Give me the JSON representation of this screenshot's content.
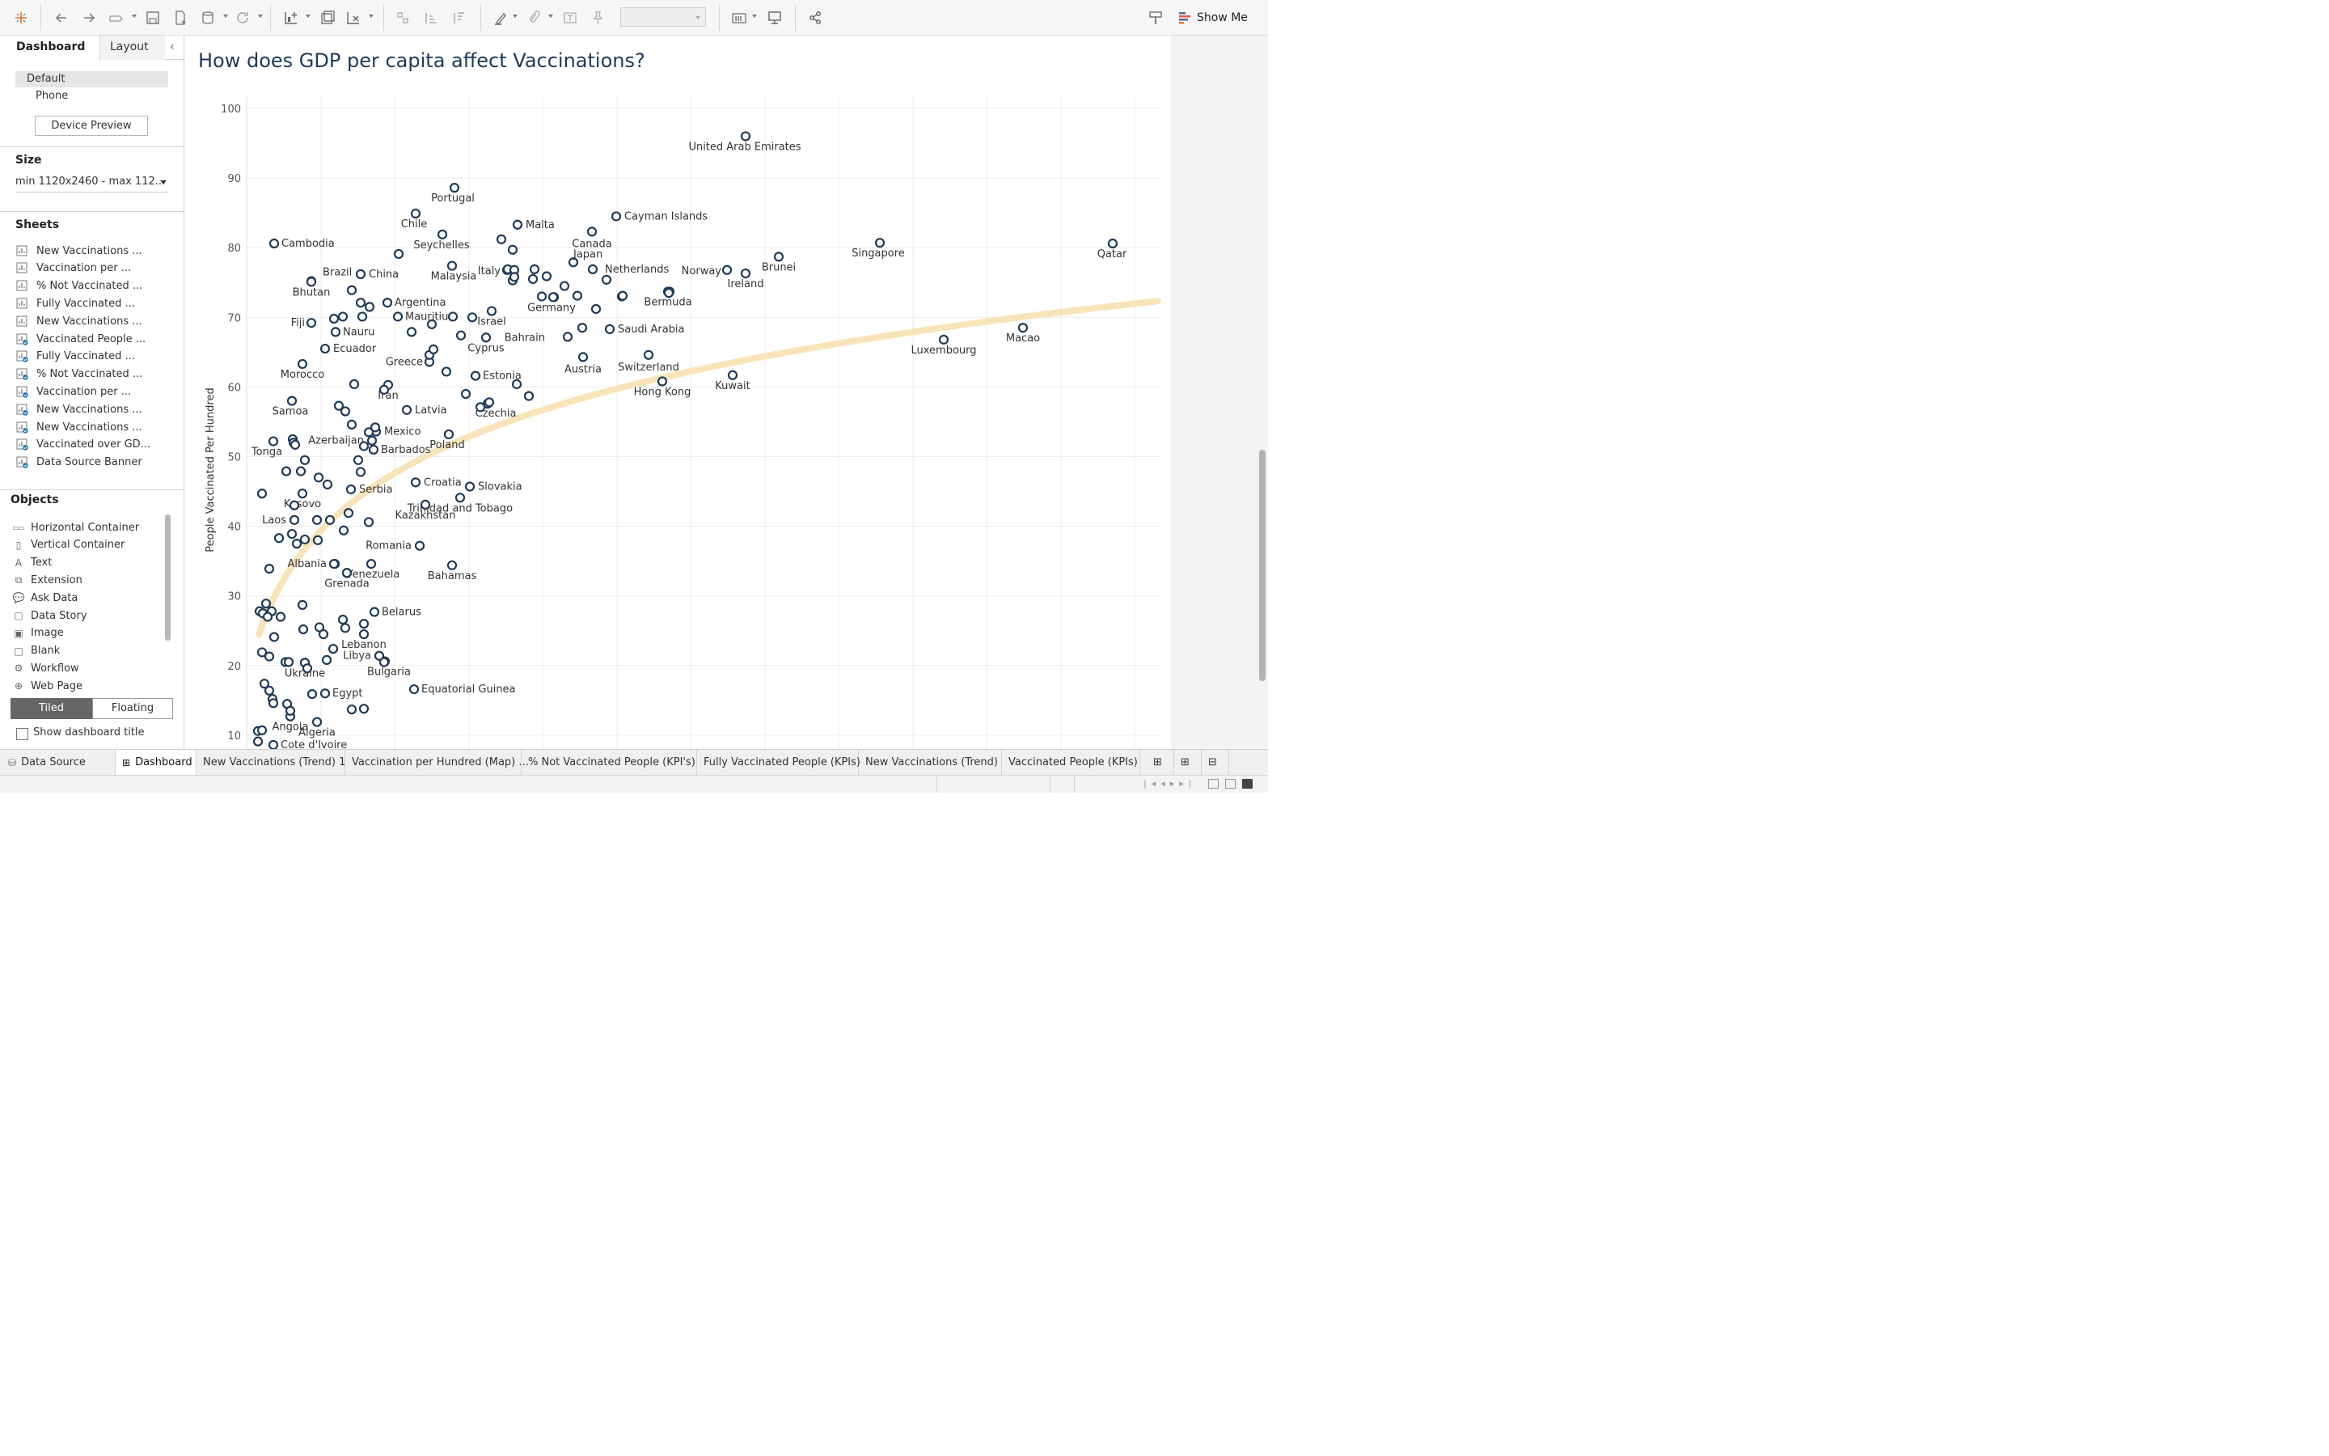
{
  "toolbar": {
    "show_me_label": "Show Me"
  },
  "left_panel": {
    "tabs": [
      "Dashboard",
      "Layout"
    ],
    "device_options": [
      "Default",
      "Phone"
    ],
    "device_preview_label": "Device Preview",
    "size_heading": "Size",
    "size_value": "min 1120x2460 - max 112...",
    "sheets_heading": "Sheets",
    "sheets": [
      {
        "label": "New Vaccinations ...",
        "used": false
      },
      {
        "label": "Vaccination per ...",
        "used": false
      },
      {
        "label": "% Not Vaccinated ...",
        "used": false
      },
      {
        "label": "Fully Vaccinated ...",
        "used": false
      },
      {
        "label": "New Vaccinations ...",
        "used": false
      },
      {
        "label": "Vaccinated People ...",
        "used": true
      },
      {
        "label": "Fully Vaccinated ...",
        "used": true
      },
      {
        "label": "% Not Vaccinated ...",
        "used": true
      },
      {
        "label": "Vaccination per ...",
        "used": true
      },
      {
        "label": "New Vaccinations ...",
        "used": true
      },
      {
        "label": "New Vaccinations ...",
        "used": true
      },
      {
        "label": "Vaccinated over GD...",
        "used": true
      },
      {
        "label": "Data Source Banner",
        "used": true
      }
    ],
    "objects_heading": "Objects",
    "objects": [
      {
        "label": "Horizontal Container",
        "icon": "horizontal-container-icon"
      },
      {
        "label": "Vertical Container",
        "icon": "vertical-container-icon"
      },
      {
        "label": "Text",
        "icon": "text-icon"
      },
      {
        "label": "Extension",
        "icon": "extension-icon"
      },
      {
        "label": "Ask Data",
        "icon": "ask-data-icon"
      },
      {
        "label": "Data Story",
        "icon": "data-story-icon"
      },
      {
        "label": "Image",
        "icon": "image-icon"
      },
      {
        "label": "Blank",
        "icon": "blank-icon"
      },
      {
        "label": "Workflow",
        "icon": "workflow-icon"
      },
      {
        "label": "Web Page",
        "icon": "web-page-icon"
      }
    ],
    "tiled_label": "Tiled",
    "floating_label": "Floating",
    "show_title_label": "Show dashboard title"
  },
  "dashboard": {
    "title": "How does GDP per capita affect Vaccinations?"
  },
  "chart_data": {
    "type": "scatter",
    "title": "How does GDP per capita affect Vaccinations?",
    "ylabel": "People Vaccinated Per Hundred",
    "xlabel": "",
    "ylim": [
      8,
      100
    ],
    "y_ticks": [
      10,
      20,
      30,
      40,
      50,
      60,
      70,
      80,
      90,
      100
    ],
    "grid": true,
    "point_color": "#1f3a56",
    "trend_color": "#f8e4b9",
    "trend_line": "logarithmic",
    "labeled_points": [
      {
        "label": "United Arab Emirates",
        "y": 96
      },
      {
        "label": "Portugal",
        "y": 88.6
      },
      {
        "label": "Chile",
        "y": 84.9
      },
      {
        "label": "Malta",
        "y": 83.3
      },
      {
        "label": "Cayman Islands",
        "y": 84.5
      },
      {
        "label": "Seychelles",
        "y": 81.9
      },
      {
        "label": "Canada",
        "y": 82.3
      },
      {
        "label": "Cambodia",
        "y": 80.6
      },
      {
        "label": "Singapore",
        "y": 80.7
      },
      {
        "label": "Qatar",
        "y": 80.6
      },
      {
        "label": "Japan",
        "y": 77.9
      },
      {
        "label": "Netherlands",
        "y": 76.9
      },
      {
        "label": "Malaysia",
        "y": 77.4
      },
      {
        "label": "Italy",
        "y": 76.8
      },
      {
        "label": "Norway",
        "y": 76.8
      },
      {
        "label": "Brunei",
        "y": 78.7
      },
      {
        "label": "China",
        "y": 76.2
      },
      {
        "label": "Brazil",
        "y": 75.2
      },
      {
        "label": "Ireland",
        "y": 76.3
      },
      {
        "label": "Bhutan",
        "y": 75.1
      },
      {
        "label": "Argentina",
        "y": 72.1
      },
      {
        "label": "Bermuda",
        "y": 73.7
      },
      {
        "label": "Germany",
        "y": 72.9
      },
      {
        "label": "Mauritius",
        "y": 70.1
      },
      {
        "label": "Israel",
        "y": 70.9
      },
      {
        "label": "Fiji",
        "y": 69.2
      },
      {
        "label": "Saudi Arabia",
        "y": 68.3
      },
      {
        "label": "Nauru",
        "y": 67.9
      },
      {
        "label": "Bahrain",
        "y": 67.2
      },
      {
        "label": "Luxembourg",
        "y": 66.8
      },
      {
        "label": "Macao",
        "y": 68.5
      },
      {
        "label": "Ecuador",
        "y": 65.5
      },
      {
        "label": "Cyprus",
        "y": 67.1
      },
      {
        "label": "Switzerland",
        "y": 64.6
      },
      {
        "label": "Austria",
        "y": 64.3
      },
      {
        "label": "Greece",
        "y": 63.6
      },
      {
        "label": "Morocco",
        "y": 63.3
      },
      {
        "label": "Estonia",
        "y": 61.6
      },
      {
        "label": "Kuwait",
        "y": 61.7
      },
      {
        "label": "Hong Kong",
        "y": 60.8
      },
      {
        "label": "Iran",
        "y": 60.3
      },
      {
        "label": "Latvia",
        "y": 56.7
      },
      {
        "label": "Czechia",
        "y": 57.6
      },
      {
        "label": "Samoa",
        "y": 58
      },
      {
        "label": "Mexico",
        "y": 53.6
      },
      {
        "label": "Poland",
        "y": 53.2
      },
      {
        "label": "Azerbaijan",
        "y": 52.3
      },
      {
        "label": "Barbados",
        "y": 51
      },
      {
        "label": "Tonga",
        "y": 52.2
      },
      {
        "label": "Croatia",
        "y": 46.3
      },
      {
        "label": "Slovakia",
        "y": 45.7
      },
      {
        "label": "Serbia",
        "y": 45.3
      },
      {
        "label": "Kosovo",
        "y": 44.7
      },
      {
        "label": "Trinidad and Tobago",
        "y": 44.1
      },
      {
        "label": "Kazakhstan",
        "y": 43.1
      },
      {
        "label": "Laos",
        "y": 40.9
      },
      {
        "label": "Romania",
        "y": 37.2
      },
      {
        "label": "Albania",
        "y": 34.6
      },
      {
        "label": "Venezuela",
        "y": 34.6
      },
      {
        "label": "Bahamas",
        "y": 34.4
      },
      {
        "label": "Grenada",
        "y": 33.3
      },
      {
        "label": "Belarus",
        "y": 27.7
      },
      {
        "label": "Lebanon",
        "y": 24.5
      },
      {
        "label": "Ukraine",
        "y": 20.4
      },
      {
        "label": "Libya",
        "y": 21.4
      },
      {
        "label": "Bulgaria",
        "y": 20.6
      },
      {
        "label": "Equatorial Guinea",
        "y": 16.6
      },
      {
        "label": "Egypt",
        "y": 16
      },
      {
        "label": "Angola",
        "y": 12.7
      },
      {
        "label": "Algeria",
        "y": 11.9
      },
      {
        "label": "Cote d'Ivoire",
        "y": 8.6
      }
    ]
  },
  "bottom_tabs": {
    "data_source": "Data Source",
    "tabs": [
      {
        "label": "Dashboard",
        "active": true
      },
      {
        "label": "New Vaccinations (Trend) 1",
        "active": false
      },
      {
        "label": "Vaccination per Hundred (Map) ...",
        "active": false
      },
      {
        "label": "% Not Vaccinated People (KPI's)",
        "active": false
      },
      {
        "label": "Fully Vaccinated People (KPIs)",
        "active": false
      },
      {
        "label": "New Vaccinations (Trend)",
        "active": false
      },
      {
        "label": "Vaccinated People (KPIs)",
        "active": false
      }
    ]
  }
}
